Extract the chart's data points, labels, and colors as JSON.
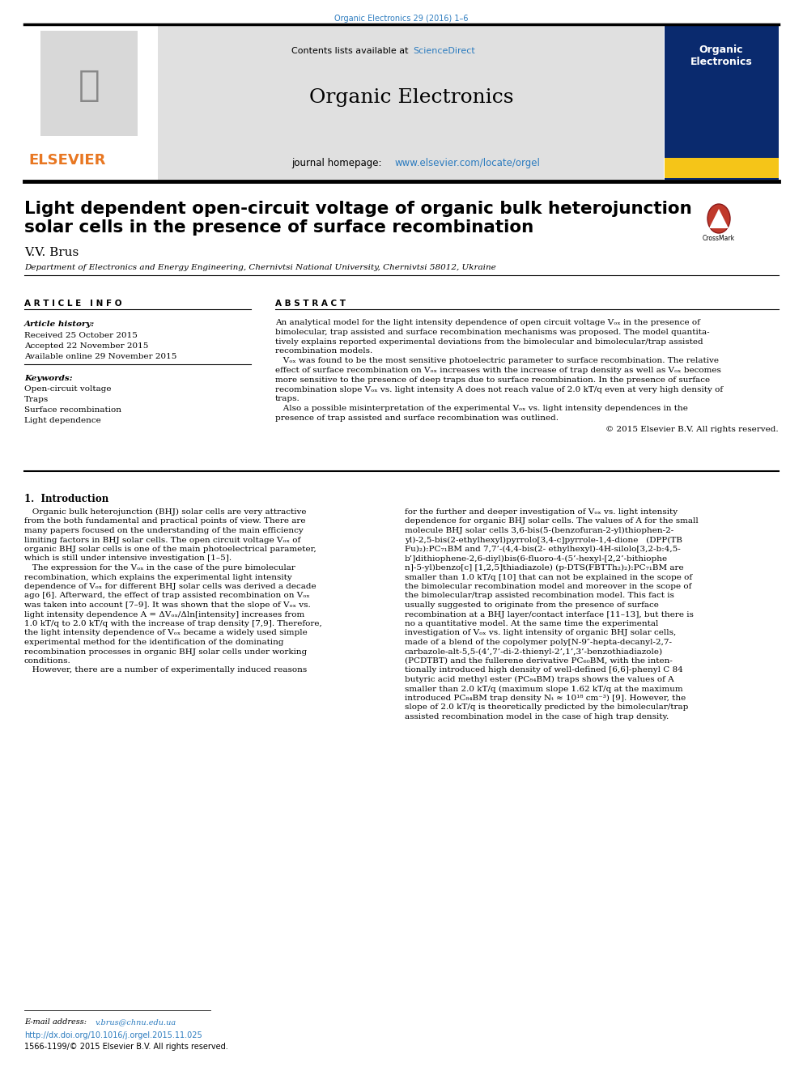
{
  "page_width": 9.92,
  "page_height": 13.23,
  "dpi": 100,
  "bg_color": "#ffffff",
  "journal_ref": "Organic Electronics 29 (2016) 1–6",
  "journal_ref_color": "#2b7bbf",
  "link_color": "#2b7bbf",
  "elsevier_color": "#e87722",
  "header_bg_color": "#e0e0e0",
  "cover_bg_color": "#0a2a6e",
  "cover_yellow": "#f5c518",
  "top_bar_color": "#222222",
  "paper_title": "Light dependent open-circuit voltage of organic bulk heterojunction\nsolar cells in the presence of surface recombination",
  "author": "V.V. Brus",
  "affiliation": "Department of Electronics and Energy Engineering, Chernivtsi National University, Chernivtsi 58012, Ukraine",
  "article_info_header": "A R T I C L E   I N F O",
  "abstract_header": "A B S T R A C T",
  "article_history_label": "Article history:",
  "received": "Received 25 October 2015",
  "accepted": "Accepted 22 November 2015",
  "available": "Available online 29 November 2015",
  "keywords_label": "Keywords:",
  "keywords": [
    "Open-circuit voltage",
    "Traps",
    "Surface recombination",
    "Light dependence"
  ],
  "abstract_lines": [
    "An analytical model for the light intensity dependence of open circuit voltage Vₒₓ in the presence of",
    "bimolecular, trap assisted and surface recombination mechanisms was proposed. The model quantita-",
    "tively explains reported experimental deviations from the bimolecular and bimolecular/trap assisted",
    "recombination models.",
    "   Vₒₓ was found to be the most sensitive photoelectric parameter to surface recombination. The relative",
    "effect of surface recombination on Vₒₓ increases with the increase of trap density as well as Vₒₓ becomes",
    "more sensitive to the presence of deep traps due to surface recombination. In the presence of surface",
    "recombination slope Vₒₓ vs. light intensity A does not reach value of 2.0 kT/q even at very high density of",
    "traps.",
    "   Also a possible misinterpretation of the experimental Vₒₓ vs. light intensity dependences in the",
    "presence of trap assisted and surface recombination was outlined."
  ],
  "copyright": "© 2015 Elsevier B.V. All rights reserved.",
  "section_title": "1.  Introduction",
  "left_col_lines": [
    "   Organic bulk heterojunction (BHJ) solar cells are very attractive",
    "from the both fundamental and practical points of view. There are",
    "many papers focused on the understanding of the main efficiency",
    "limiting factors in BHJ solar cells. The open circuit voltage Vₒₓ of",
    "organic BHJ solar cells is one of the main photoelectrical parameter,",
    "which is still under intensive investigation [1–5].",
    "   The expression for the Vₒₓ in the case of the pure bimolecular",
    "recombination, which explains the experimental light intensity",
    "dependence of Vₒₓ for different BHJ solar cells was derived a decade",
    "ago [6]. Afterward, the effect of trap assisted recombination on Vₒₓ",
    "was taken into account [7–9]. It was shown that the slope of Vₒₓ vs.",
    "light intensity dependence A = ΔVₒₓ/Δln[intensity] increases from",
    "1.0 kT/q to 2.0 kT/q with the increase of trap density [7,9]. Therefore,",
    "the light intensity dependence of Vₒₓ became a widely used simple",
    "experimental method for the identification of the dominating",
    "recombination processes in organic BHJ solar cells under working",
    "conditions.",
    "   However, there are a number of experimentally induced reasons"
  ],
  "right_col_lines": [
    "for the further and deeper investigation of Vₒₓ vs. light intensity",
    "dependence for organic BHJ solar cells. The values of A for the small",
    "molecule BHJ solar cells 3,6-bis(5-(benzofuran-2-yl)thiophen-2-",
    "yl)-2,5-bis(2-ethylhexyl)pyrrolo[3,4-c]pyrrole-1,4-dione   (DPP(TB",
    "Fu)₂):PC₇₁BM and 7,7’-(4,4-bis(2- ethylhexyl)-4H-silolo[3,2-b:4,5-",
    "b’]dithiophene-2,6-diyl)bis(6-fluoro-4-(5’-hexyl-[2,2’-bithiophe",
    "n]-5-yl)benzo[c] [1,2,5]thiadiazole) (p-DTS(FBTTh₂)₂):PC₇₁BM are",
    "smaller than 1.0 kT/q [10] that can not be explained in the scope of",
    "the bimolecular recombination model and moreover in the scope of",
    "the bimolecular/trap assisted recombination model. This fact is",
    "usually suggested to originate from the presence of surface",
    "recombination at a BHJ layer/contact interface [11–13], but there is",
    "no a quantitative model. At the same time the experimental",
    "investigation of Vₒₓ vs. light intensity of organic BHJ solar cells,",
    "made of a blend of the copolymer poly[N-9″-hepta-decanyl-2,7-",
    "carbazole-alt-5,5-(4’,7’-di-2-thienyl-2’,1’,3’-benzothiadiazole)",
    "(PCDTBT) and the fullerene derivative PC₆₀BM, with the inten-",
    "tionally introduced high density of well-defined [6,6]-phenyl C 84",
    "butyric acid methyl ester (PC₈₄BM) traps shows the values of A",
    "smaller than 2.0 kT/q (maximum slope 1.62 kT/q at the maximum",
    "introduced PC₈₄BM trap density Nₜ ≈ 10¹⁸ cm⁻³) [9]. However, the",
    "slope of 2.0 kT/q is theoretically predicted by the bimolecular/trap",
    "assisted recombination model in the case of high trap density."
  ],
  "email_label": "E-mail address: ",
  "email": "v.brus@chnu.edu.ua",
  "doi_url": "http://dx.doi.org/10.1016/j.orgel.2015.11.025",
  "issn": "1566-1199/© 2015 Elsevier B.V. All rights reserved."
}
